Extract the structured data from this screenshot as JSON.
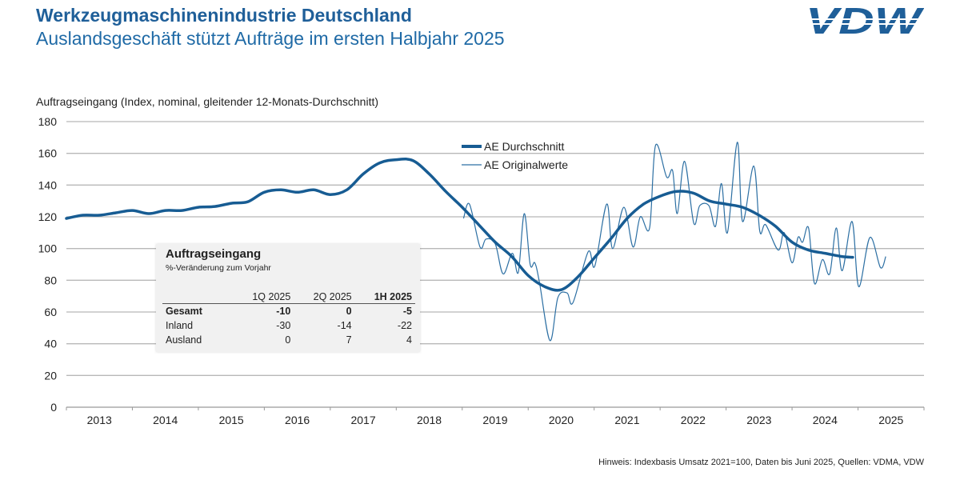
{
  "header": {
    "title": "Werkzeugmaschinenindustrie Deutschland",
    "subtitle": "Auslandsgeschäft stützt Aufträge im ersten Halbjahr 2025",
    "logo_text": "VDW"
  },
  "footer": {
    "note": "Hinweis: Indexbasis Umsatz 2021=100, Daten bis Juni 2025, Quellen: VDMA, VDW"
  },
  "colors": {
    "brand": "#1f5f99",
    "average": "#175c93",
    "original": "#2c6fa3",
    "grid": "#b8b8b8"
  },
  "table": {
    "title": "Auftragseingang",
    "subtitle": "%-Veränderung zum Vorjahr",
    "columns": [
      "",
      "1Q 2025",
      "2Q 2025",
      "1H 2025"
    ],
    "rows": [
      {
        "label": "Gesamt",
        "values": [
          "-10",
          "0",
          "-5"
        ]
      },
      {
        "label": "Inland",
        "values": [
          "-30",
          "-14",
          "-22"
        ]
      },
      {
        "label": "Ausland",
        "values": [
          "0",
          "7",
          "4"
        ]
      }
    ]
  },
  "chart_data": {
    "type": "line",
    "ylabel": "Auftragseingang (Index, nominal, gleitender 12-Monats-Durchschnitt)",
    "ylim": [
      0,
      180
    ],
    "yticks": [
      "0",
      "20",
      "40",
      "60",
      "80",
      "100",
      "120",
      "140",
      "160",
      "180"
    ],
    "xlim": [
      2013,
      2026
    ],
    "xticks": [
      "2013",
      "2014",
      "2015",
      "2016",
      "2017",
      "2018",
      "2019",
      "2020",
      "2021",
      "2022",
      "2023",
      "2024",
      "2025"
    ],
    "grid": true,
    "legend_position": "top-center",
    "series": [
      {
        "name": "AE Durchschnitt",
        "points": [
          [
            2013.0,
            119
          ],
          [
            2013.25,
            121
          ],
          [
            2013.5,
            121
          ],
          [
            2013.75,
            122.5
          ],
          [
            2014.0,
            124
          ],
          [
            2014.25,
            122
          ],
          [
            2014.5,
            124
          ],
          [
            2014.75,
            124
          ],
          [
            2015.0,
            126
          ],
          [
            2015.25,
            126.5
          ],
          [
            2015.5,
            128.5
          ],
          [
            2015.75,
            129.5
          ],
          [
            2016.0,
            135.5
          ],
          [
            2016.25,
            137
          ],
          [
            2016.5,
            135.5
          ],
          [
            2016.75,
            137
          ],
          [
            2017.0,
            134
          ],
          [
            2017.25,
            137
          ],
          [
            2017.5,
            147
          ],
          [
            2017.75,
            154
          ],
          [
            2018.0,
            156
          ],
          [
            2018.25,
            155.5
          ],
          [
            2018.5,
            147
          ],
          [
            2018.75,
            136
          ],
          [
            2019.0,
            126
          ],
          [
            2019.25,
            115
          ],
          [
            2019.5,
            104
          ],
          [
            2019.75,
            95
          ],
          [
            2020.0,
            83
          ],
          [
            2020.25,
            76
          ],
          [
            2020.5,
            74
          ],
          [
            2020.75,
            82
          ],
          [
            2021.0,
            94
          ],
          [
            2021.25,
            106
          ],
          [
            2021.5,
            119
          ],
          [
            2021.75,
            128
          ],
          [
            2022.0,
            133
          ],
          [
            2022.25,
            136
          ],
          [
            2022.5,
            135
          ],
          [
            2022.75,
            130
          ],
          [
            2023.0,
            128
          ],
          [
            2023.25,
            126
          ],
          [
            2023.5,
            121
          ],
          [
            2023.75,
            114
          ],
          [
            2024.0,
            104
          ],
          [
            2024.25,
            99
          ],
          [
            2024.5,
            97
          ],
          [
            2024.75,
            95
          ],
          [
            2024.92,
            94.5
          ]
        ]
      },
      {
        "name": "AE Originalwerte",
        "points": [
          [
            2019.02,
            119
          ],
          [
            2019.11,
            128
          ],
          [
            2019.27,
            101
          ],
          [
            2019.36,
            106
          ],
          [
            2019.5,
            103
          ],
          [
            2019.62,
            84
          ],
          [
            2019.76,
            97
          ],
          [
            2019.85,
            85
          ],
          [
            2019.94,
            122
          ],
          [
            2020.03,
            90
          ],
          [
            2020.1,
            91
          ],
          [
            2020.17,
            79
          ],
          [
            2020.33,
            42
          ],
          [
            2020.45,
            69
          ],
          [
            2020.59,
            72
          ],
          [
            2020.68,
            66
          ],
          [
            2020.91,
            98
          ],
          [
            2021.01,
            89
          ],
          [
            2021.19,
            128
          ],
          [
            2021.28,
            100
          ],
          [
            2021.45,
            126
          ],
          [
            2021.59,
            101
          ],
          [
            2021.7,
            120
          ],
          [
            2021.84,
            113
          ],
          [
            2021.93,
            165
          ],
          [
            2022.1,
            145
          ],
          [
            2022.19,
            149
          ],
          [
            2022.26,
            122
          ],
          [
            2022.37,
            155
          ],
          [
            2022.51,
            116
          ],
          [
            2022.6,
            127
          ],
          [
            2022.74,
            127
          ],
          [
            2022.84,
            114
          ],
          [
            2022.93,
            141
          ],
          [
            2023.02,
            110
          ],
          [
            2023.17,
            167
          ],
          [
            2023.25,
            117
          ],
          [
            2023.42,
            152
          ],
          [
            2023.51,
            111
          ],
          [
            2023.6,
            115
          ],
          [
            2023.79,
            99
          ],
          [
            2023.88,
            110
          ],
          [
            2024.0,
            91
          ],
          [
            2024.09,
            107
          ],
          [
            2024.16,
            104
          ],
          [
            2024.25,
            113
          ],
          [
            2024.34,
            78
          ],
          [
            2024.46,
            93
          ],
          [
            2024.57,
            84
          ],
          [
            2024.67,
            113
          ],
          [
            2024.76,
            86
          ],
          [
            2024.91,
            117
          ],
          [
            2025.01,
            76
          ],
          [
            2025.18,
            107
          ],
          [
            2025.34,
            88
          ],
          [
            2025.42,
            95
          ]
        ]
      }
    ]
  }
}
